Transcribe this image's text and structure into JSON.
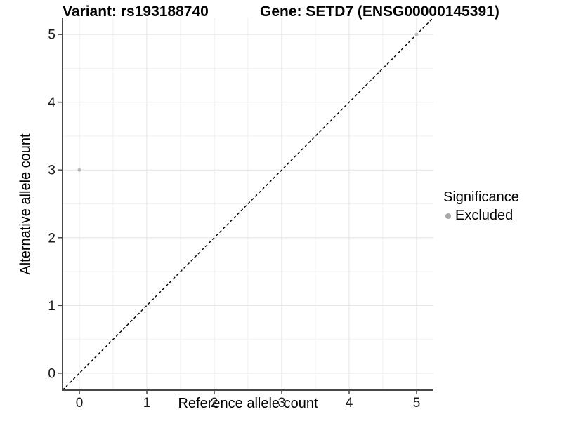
{
  "chart_data": {
    "type": "scatter",
    "titles": {
      "left": "Variant: rs193188740",
      "right": "Gene: SETD7 (ENSG00000145391)"
    },
    "xlabel": "Reference allele count",
    "ylabel": "Alternative allele count",
    "x_ticks": [
      "0",
      "1",
      "2",
      "3",
      "4",
      "5"
    ],
    "y_ticks": [
      "0",
      "1",
      "2",
      "3",
      "4",
      "5"
    ],
    "xlim": [
      -0.25,
      5.25
    ],
    "ylim": [
      -0.25,
      5.25
    ],
    "grid": {
      "major": "#e3e3e3",
      "minor": "#f1f1f1",
      "minor_on": true
    },
    "axis_color": "#474747",
    "tick_label_color": "#1a1a1a",
    "background": "#ffffff",
    "reference_line": {
      "type": "identity",
      "style": "dashed",
      "color": "#000000"
    },
    "point_color": "#b9b9b9",
    "points": [
      {
        "x": 0,
        "y": 3,
        "significance": "Excluded"
      },
      {
        "x": 5,
        "y": 5,
        "significance": "Excluded"
      }
    ],
    "legend": {
      "title": "Significance",
      "position": "right",
      "entries": [
        {
          "label": "Excluded",
          "color": "#a9a9a9"
        }
      ]
    }
  }
}
